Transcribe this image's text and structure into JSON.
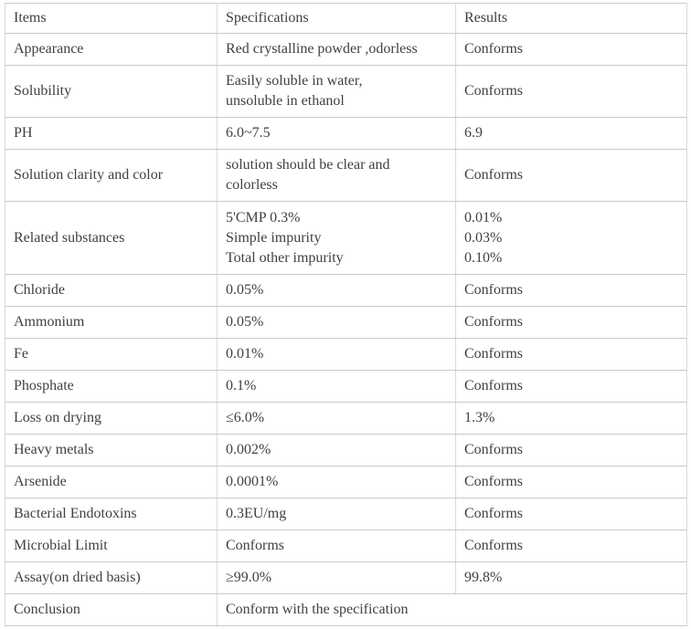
{
  "colors": {
    "background": "#ffffff",
    "border_horizontal": "#c9c9c9",
    "border_vertical": "#dadada",
    "text": "#404040"
  },
  "table": {
    "columns": [
      "Items",
      "Specifications",
      "Results"
    ],
    "rows": [
      {
        "item": "Appearance",
        "spec": [
          "Red crystalline powder ,odorless"
        ],
        "result": [
          "Conforms"
        ]
      },
      {
        "item": "Solubility",
        "spec": [
          "Easily soluble in water,",
          "unsoluble in ethanol"
        ],
        "result": [
          "Conforms"
        ]
      },
      {
        "item": "PH",
        "spec": [
          "6.0~7.5"
        ],
        "result": [
          "6.9"
        ]
      },
      {
        "item": "Solution clarity and color",
        "spec": [
          "solution should be clear and",
          "colorless"
        ],
        "result": [
          "Conforms"
        ]
      },
      {
        "item": "Related substances",
        "spec": [
          "5'CMP 0.3%",
          "Simple impurity",
          "Total other impurity"
        ],
        "result": [
          "0.01%",
          "0.03%",
          "0.10%"
        ]
      },
      {
        "item": "Chloride",
        "spec": [
          "0.05%"
        ],
        "result": [
          "Conforms"
        ]
      },
      {
        "item": "Ammonium",
        "spec": [
          "0.05%"
        ],
        "result": [
          "Conforms"
        ]
      },
      {
        "item": "Fe",
        "spec": [
          "0.01%"
        ],
        "result": [
          "Conforms"
        ]
      },
      {
        "item": "Phosphate",
        "spec": [
          "0.1%"
        ],
        "result": [
          "Conforms"
        ]
      },
      {
        "item": "Loss on drying",
        "spec": [
          "≤6.0%"
        ],
        "result": [
          "1.3%"
        ]
      },
      {
        "item": "Heavy metals",
        "spec": [
          "0.002%"
        ],
        "result": [
          "Conforms"
        ]
      },
      {
        "item": "Arsenide",
        "spec": [
          "0.0001%"
        ],
        "result": [
          "Conforms"
        ]
      },
      {
        "item": "Bacterial Endotoxins",
        "spec": [
          "0.3EU/mg"
        ],
        "result": [
          "Conforms"
        ]
      },
      {
        "item": "Microbial Limit",
        "spec": [
          "Conforms"
        ],
        "result": [
          "Conforms"
        ]
      },
      {
        "item": "Assay(on dried basis)",
        "spec": [
          "≥99.0%"
        ],
        "result": [
          "99.8%"
        ]
      },
      {
        "item": "Conclusion",
        "spec": [
          "Conform with the specification"
        ],
        "result": null,
        "spec_colspan": 2
      }
    ]
  }
}
